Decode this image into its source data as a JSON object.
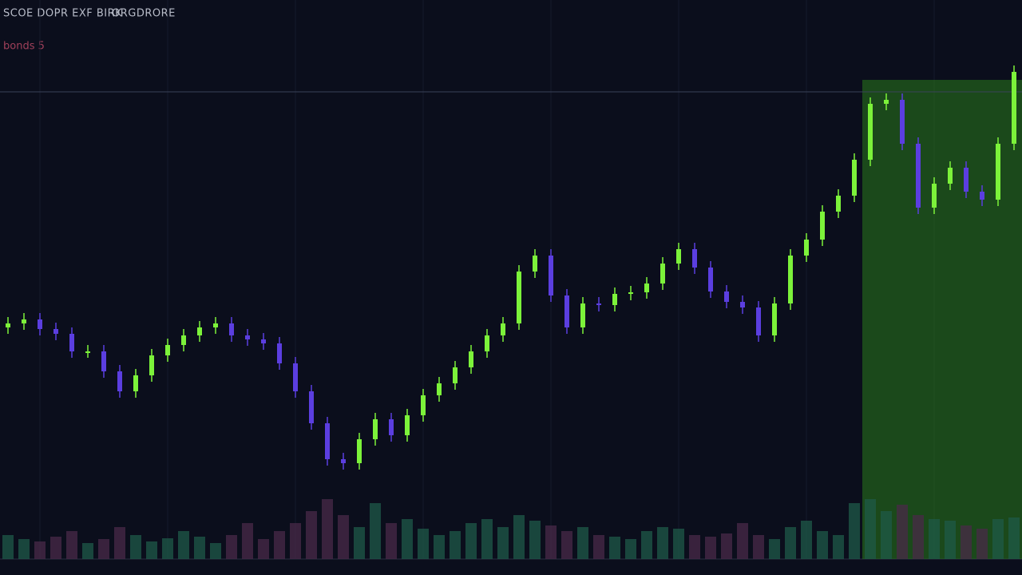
{
  "chart_data": {
    "type": "candlestick",
    "title": "SCOE DOPR EXF BIRK",
    "subtitle": "ORGDRORE",
    "annotation": "bonds 5",
    "categories": [
      null,
      null,
      null,
      null,
      null,
      null,
      null,
      null,
      null,
      null,
      null,
      null,
      null,
      null,
      null,
      null,
      null,
      null,
      null,
      null,
      null,
      null,
      null,
      null,
      null,
      null,
      null,
      null,
      null,
      null,
      null,
      null,
      null,
      null,
      null,
      null,
      null,
      null,
      null,
      null,
      null,
      null,
      null,
      null,
      null,
      null,
      null,
      null,
      null,
      null,
      null,
      null,
      null,
      null,
      null,
      null,
      null,
      null,
      null,
      null,
      null,
      null,
      null,
      null
    ],
    "open": [
      29,
      29.5,
      30,
      28.8,
      28.2,
      26,
      26,
      23.5,
      21,
      23,
      25.5,
      26.8,
      28,
      29,
      29.5,
      28,
      27.5,
      27,
      24.5,
      21,
      17,
      12.5,
      12,
      15,
      17.5,
      15.5,
      18,
      20.5,
      22,
      24,
      26,
      28,
      29.5,
      36,
      38,
      33,
      29,
      32,
      31.8,
      33.2,
      33.4,
      34.5,
      37,
      38.8,
      36.5,
      33.5,
      32.2,
      31.5,
      28,
      32,
      38,
      40,
      43.5,
      45.5,
      50,
      57,
      57.5,
      52,
      44,
      47,
      49,
      46,
      45,
      52
    ],
    "high": [
      30.3,
      30.8,
      30.8,
      29.6,
      29,
      26.8,
      26.8,
      24.3,
      23.8,
      26.3,
      27.6,
      28.8,
      29.8,
      30.3,
      30.3,
      28.8,
      28.3,
      27.8,
      25.3,
      21.8,
      17.8,
      13.3,
      15.8,
      18.3,
      18.3,
      18.8,
      21.3,
      22.8,
      24.8,
      26.8,
      28.8,
      30.3,
      36.8,
      38.8,
      38.8,
      33.8,
      32.8,
      32.8,
      34,
      34.2,
      35.3,
      37.8,
      39.6,
      39.6,
      37.3,
      34.3,
      33,
      32.3,
      32.8,
      38.8,
      40.8,
      44.3,
      46.3,
      50.8,
      57.8,
      58.3,
      58.3,
      52.8,
      47.8,
      49.8,
      49.8,
      46.8,
      52.8,
      61.8
    ],
    "low": [
      28.2,
      28.7,
      28,
      27.4,
      25.2,
      25.2,
      22.7,
      20.2,
      20.2,
      22.2,
      24.7,
      26,
      27.2,
      28.2,
      27.2,
      26.7,
      26.2,
      23.7,
      20.2,
      16.2,
      11.7,
      11.2,
      11.2,
      14.2,
      14.7,
      14.7,
      17.2,
      19.7,
      21.2,
      23.2,
      25.2,
      27.2,
      28.7,
      35.2,
      32.2,
      28.2,
      28.2,
      31,
      31,
      32.4,
      32.6,
      33.7,
      36.2,
      35.7,
      32.7,
      31.4,
      30.7,
      27.2,
      27.2,
      31.2,
      37.2,
      39.2,
      42.7,
      44.7,
      49.2,
      56.2,
      51.2,
      43.2,
      43.2,
      46.2,
      45.2,
      44.2,
      44.2,
      51.2
    ],
    "close": [
      29.5,
      30,
      28.8,
      28.2,
      26,
      26,
      23.5,
      21,
      23,
      25.5,
      26.8,
      28,
      29,
      29.5,
      28,
      27.5,
      27,
      24.5,
      21,
      17,
      12.5,
      12,
      15,
      17.5,
      15.5,
      18,
      20.5,
      22,
      24,
      26,
      28,
      29.5,
      36,
      38,
      33,
      29,
      32,
      31.8,
      33.2,
      33.4,
      34.5,
      37,
      38.8,
      36.5,
      33.5,
      32.2,
      31.5,
      28,
      32,
      38,
      40,
      43.5,
      45.5,
      50,
      57,
      57.5,
      52,
      44,
      47,
      49,
      46,
      45,
      52,
      61
    ],
    "volume": [
      30,
      25,
      22,
      28,
      35,
      20,
      25,
      40,
      30,
      22,
      26,
      35,
      28,
      20,
      30,
      45,
      25,
      35,
      45,
      60,
      75,
      55,
      40,
      70,
      45,
      50,
      38,
      30,
      35,
      45,
      50,
      40,
      55,
      48,
      42,
      35,
      40,
      30,
      28,
      25,
      35,
      40,
      38,
      30,
      28,
      32,
      45,
      30,
      25,
      40,
      48,
      35,
      30,
      70,
      75,
      60,
      68,
      55,
      50,
      48,
      42,
      38,
      50,
      52
    ],
    "ylim": [
      0,
      64
    ],
    "volume_ylim": [
      0,
      100
    ],
    "hline": 58.5,
    "highlight_from": 54,
    "up_color": "#7cf23a",
    "down_color": "#5b3ee0",
    "highlight_color": "#2a7a1c",
    "grid": true
  }
}
